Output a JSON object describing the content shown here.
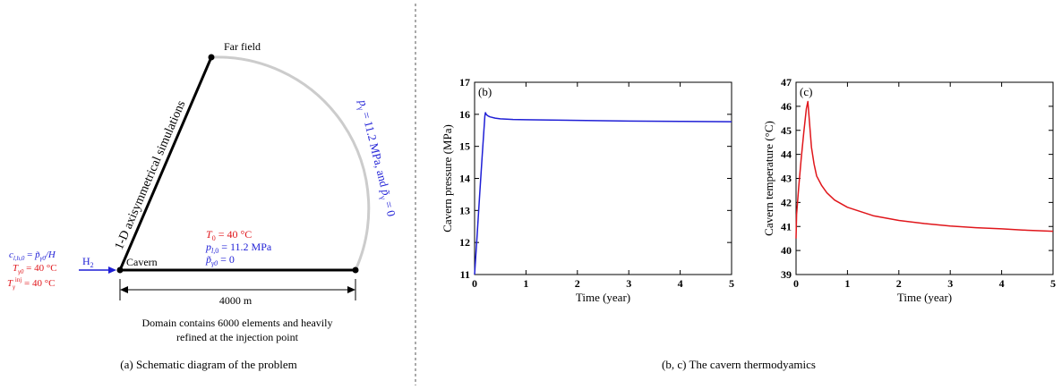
{
  "left_panel": {
    "far_field_label": "Far field",
    "axisym_label": "1-D axisymmetrical simulations",
    "cavern_label": "Cavern",
    "h2_label": "H",
    "h2_sub": "2",
    "boundary_label": "p̃ᵧ = 11.2 MPa, and  p̃ᵧ = 0",
    "boundary_part1": "p",
    "boundary_part2": "= 11.2 MPa, and",
    "boundary_part3": "p̃",
    "boundary_part4": "= 0",
    "init_T": "T₀ = 40 °C",
    "init_p": "pₗ₀   = 11.2 MPa",
    "init_pg": "p̃ᵧ₀ = 0",
    "inj_c": "cₗ₀ = p̃ᵧ₀/H",
    "inj_T": "Tᵧ₀ = 40 °C",
    "inj_Tinj": "Tᵧⁱⁿʲ = 40 °C",
    "length_label": "4000 m",
    "domain_note_1": "Domain contains 6000 elements and heavily",
    "domain_note_2": "refined at the injection point",
    "caption": "(a) Schematic diagram of the problem",
    "colors": {
      "red": "#e0161b",
      "blue": "#1f1fd6",
      "arc": "#cccccc"
    }
  },
  "right_caption": "(b, c) The cavern thermodyamics",
  "chart_data": [
    {
      "type": "line",
      "panel_label": "(b)",
      "xlabel": "Time (year)",
      "ylabel": "Cavern pressure (MPa)",
      "xlim": [
        0,
        5
      ],
      "ylim": [
        11,
        17
      ],
      "xticks": [
        0,
        1,
        2,
        3,
        4,
        5
      ],
      "yticks": [
        11,
        12,
        13,
        14,
        15,
        16,
        17
      ],
      "color": "#1f1fd6",
      "x": [
        0,
        0.05,
        0.1,
        0.15,
        0.2,
        0.21,
        0.23,
        0.26,
        0.3,
        0.4,
        0.5,
        0.75,
        1,
        1.5,
        2,
        3,
        4,
        5
      ],
      "y": [
        11.0,
        12.25,
        13.5,
        14.75,
        15.95,
        16.05,
        15.99,
        15.95,
        15.92,
        15.88,
        15.86,
        15.84,
        15.83,
        15.82,
        15.81,
        15.79,
        15.78,
        15.77
      ]
    },
    {
      "type": "line",
      "panel_label": "(c)",
      "xlabel": "Time (year)",
      "ylabel": "Cavern temperature (°C)",
      "xlim": [
        0,
        5
      ],
      "ylim": [
        39,
        47
      ],
      "xticks": [
        0,
        1,
        2,
        3,
        4,
        5
      ],
      "yticks": [
        39,
        40,
        41,
        42,
        43,
        44,
        45,
        46,
        47
      ],
      "color": "#e0161b",
      "x": [
        0,
        0.01,
        0.05,
        0.1,
        0.15,
        0.2,
        0.23,
        0.27,
        0.3,
        0.35,
        0.4,
        0.5,
        0.6,
        0.75,
        1,
        1.5,
        2,
        2.5,
        3,
        3.5,
        4,
        4.5,
        5
      ],
      "y": [
        40.5,
        41.5,
        42.6,
        43.8,
        44.9,
        45.9,
        46.2,
        45.1,
        44.3,
        43.6,
        43.1,
        42.7,
        42.4,
        42.1,
        41.8,
        41.45,
        41.25,
        41.12,
        41.02,
        40.95,
        40.9,
        40.84,
        40.8
      ]
    }
  ]
}
